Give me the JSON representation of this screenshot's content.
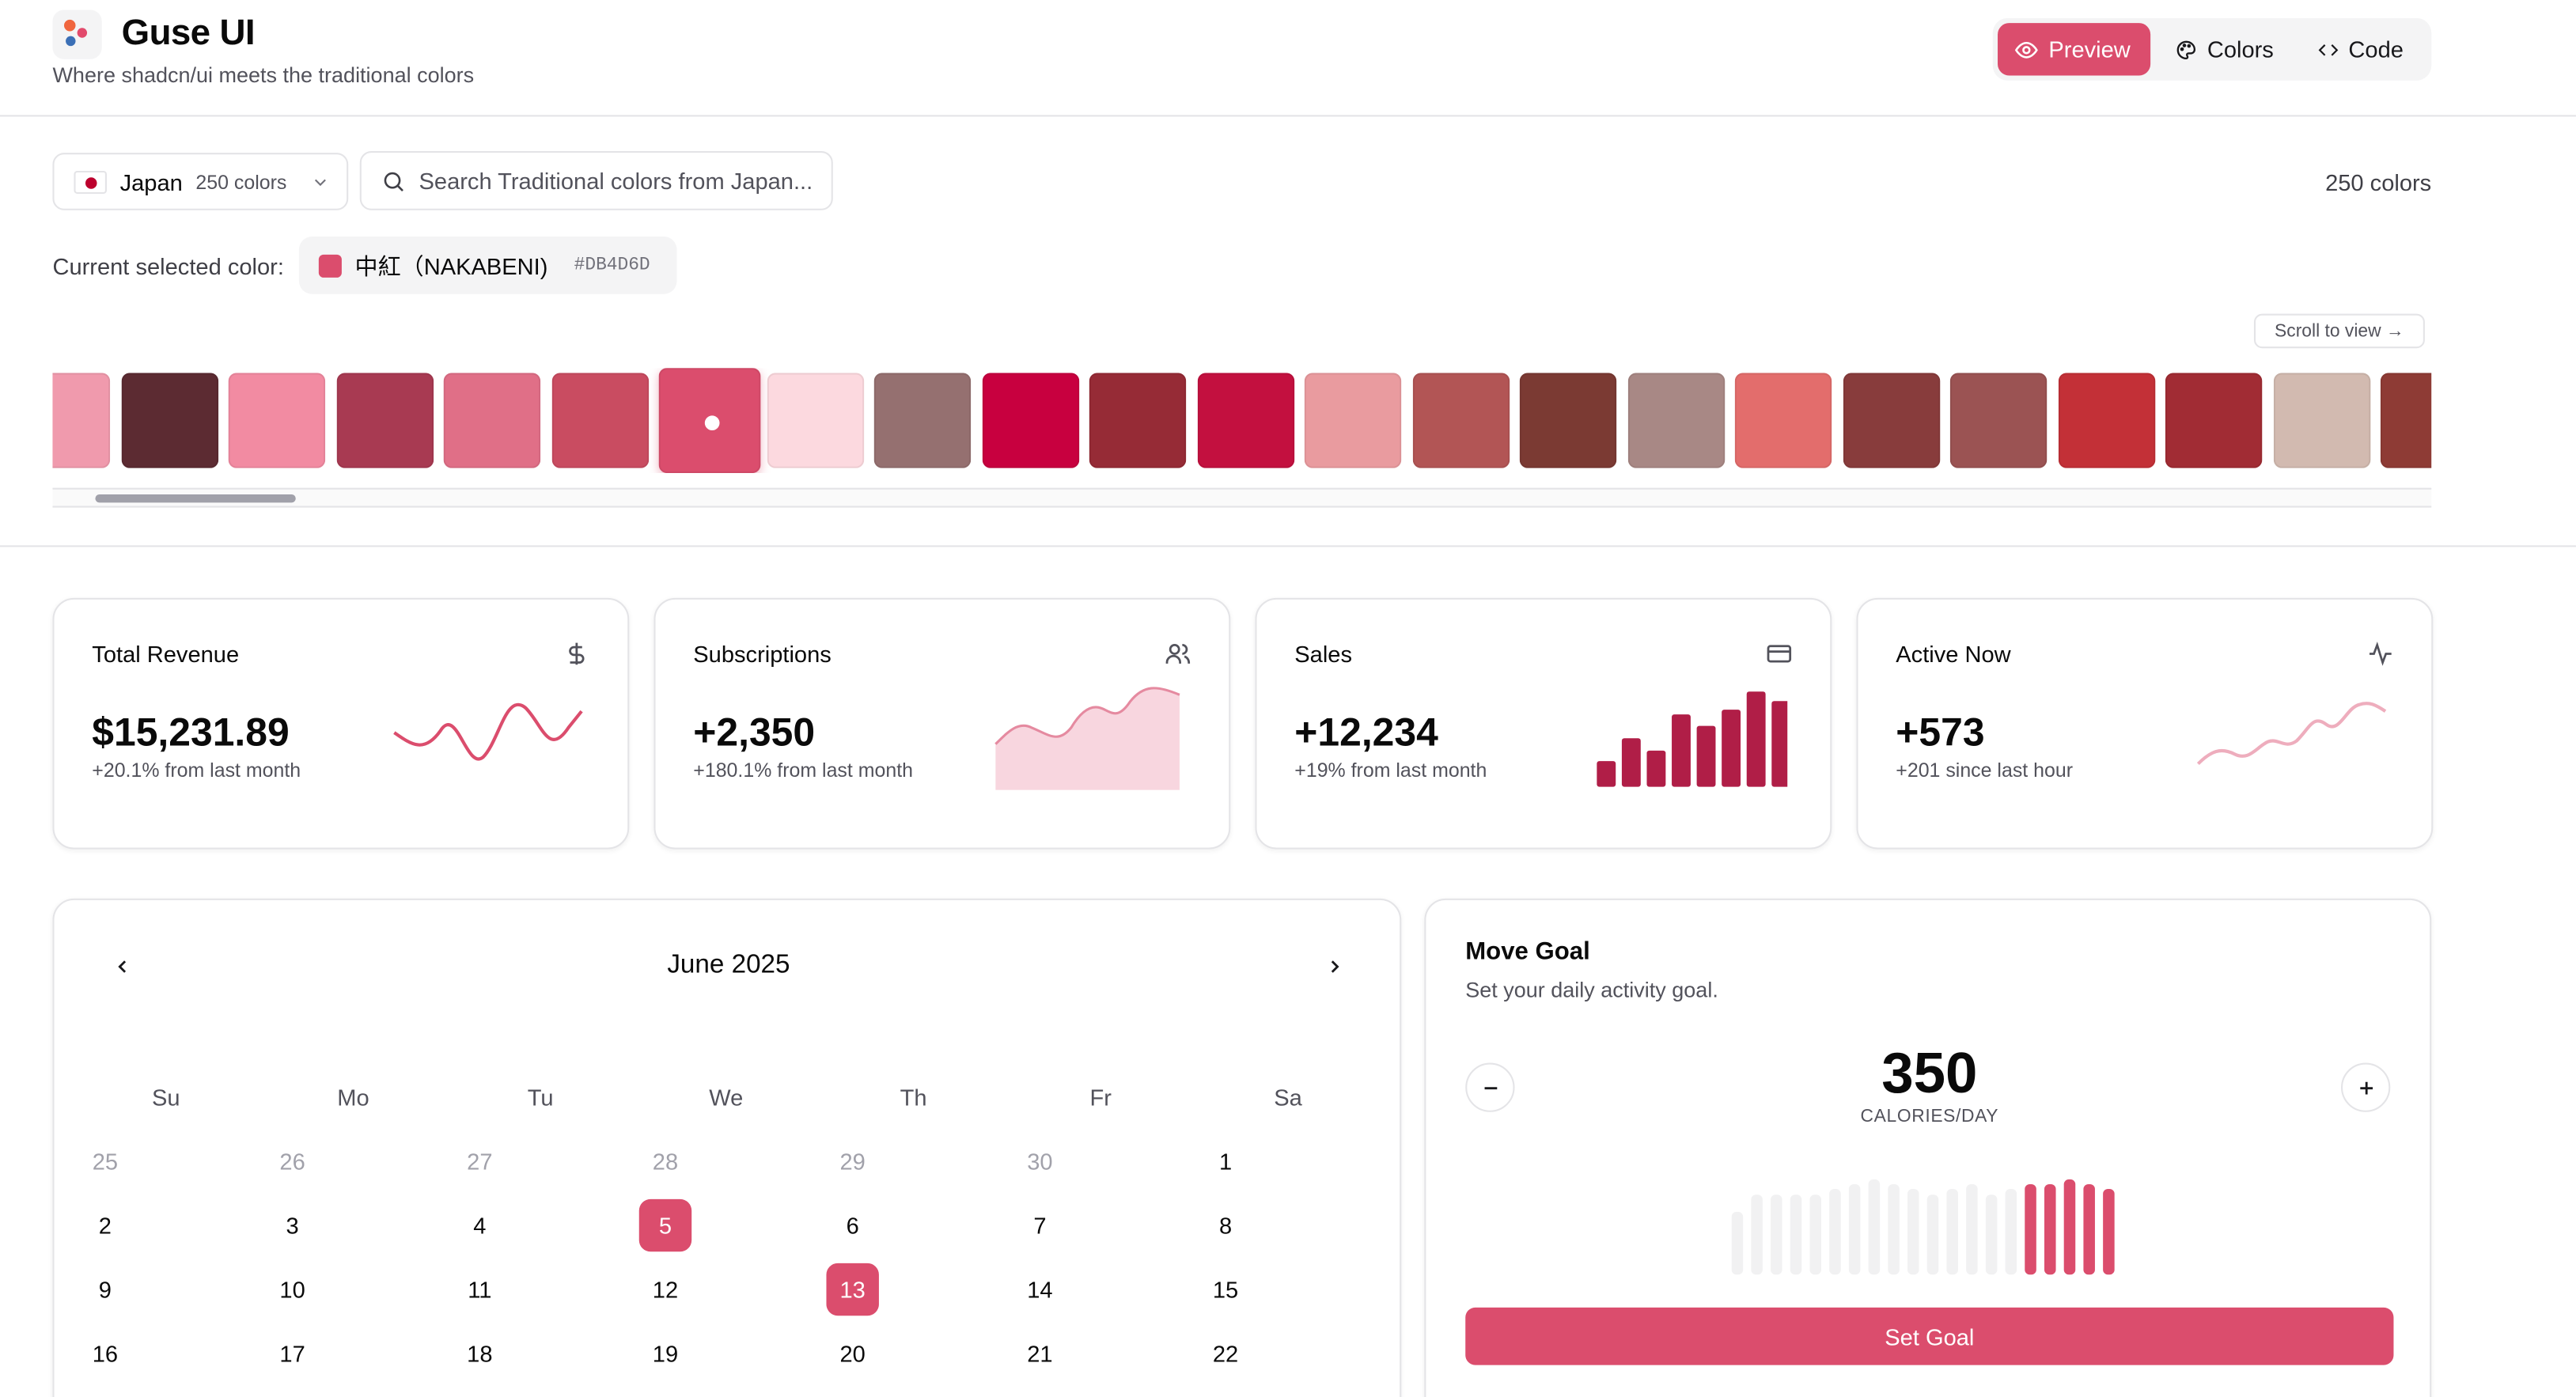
{
  "header": {
    "brand": "Guse UI",
    "tagline": "Where shadcn/ui meets the traditional colors",
    "tabs": [
      {
        "label": "Preview",
        "icon": "eye-icon",
        "active": true
      },
      {
        "label": "Colors",
        "icon": "palette-icon",
        "active": false
      },
      {
        "label": "Code",
        "icon": "code-icon",
        "active": false
      }
    ]
  },
  "controls": {
    "country": "Japan",
    "country_count": "250 colors",
    "search_placeholder": "Search Traditional colors from Japan...",
    "total": "250 colors",
    "current_label": "Current selected color:",
    "current_name": "中紅（NAKABENI)",
    "current_hex": "#DB4D6D",
    "scroll_hint": "Scroll to view →"
  },
  "palette": [
    "#f09aad",
    "#5c2b32",
    "#f28ba2",
    "#a83a52",
    "#e06f87",
    "#c94c61",
    "#db4d6d",
    "#fcd9df",
    "#957070",
    "#c8003f",
    "#962b36",
    "#c3103f",
    "#e99b9f",
    "#b25555",
    "#7b3a33",
    "#a88885",
    "#e36d6c",
    "#883c3c",
    "#9b5353",
    "#c33037",
    "#a12c34",
    "#d2bab0",
    "#8e3b35"
  ],
  "selected_index": 6,
  "stats": [
    {
      "title": "Total Revenue",
      "value": "$15,231.89",
      "sub": "+20.1% from last month",
      "icon": "dollar-icon"
    },
    {
      "title": "Subscriptions",
      "value": "+2,350",
      "sub": "+180.1% from last month",
      "icon": "users-icon"
    },
    {
      "title": "Sales",
      "value": "+12,234",
      "sub": "+19% from last month",
      "icon": "credit-card-icon"
    },
    {
      "title": "Active Now",
      "value": "+573",
      "sub": "+201 since last hour",
      "icon": "activity-icon"
    }
  ],
  "sales_bars": [
    0.27,
    0.51,
    0.38,
    0.76,
    0.64,
    0.81,
    1.0,
    0.9
  ],
  "calendar": {
    "title": "June 2025",
    "weekdays": [
      "Su",
      "Mo",
      "Tu",
      "We",
      "Th",
      "Fr",
      "Sa"
    ],
    "weeks": [
      [
        "25",
        "26",
        "27",
        "28",
        "29",
        "30",
        "1"
      ],
      [
        "2",
        "3",
        "4",
        "5",
        "6",
        "7",
        "8"
      ],
      [
        "9",
        "10",
        "11",
        "12",
        "13",
        "14",
        "15"
      ],
      [
        "16",
        "17",
        "18",
        "19",
        "20",
        "21",
        "22"
      ]
    ],
    "muted_first_row": 6,
    "selected": [
      "5",
      "13"
    ]
  },
  "goal": {
    "title": "Move Goal",
    "description": "Set your daily activity goal.",
    "value": "350",
    "unit": "CALORIES/DAY",
    "button": "Set Goal",
    "bars": [
      0.66,
      0.84,
      0.84,
      0.84,
      0.84,
      0.9,
      0.95,
      1.0,
      0.95,
      0.9,
      0.84,
      0.9,
      0.95,
      0.84,
      0.9,
      0.95,
      0.95,
      1.0,
      0.95,
      0.9
    ],
    "active_from": 15
  },
  "colors": {
    "accent": "#db4d6d",
    "accent_dark": "#b01e47"
  }
}
